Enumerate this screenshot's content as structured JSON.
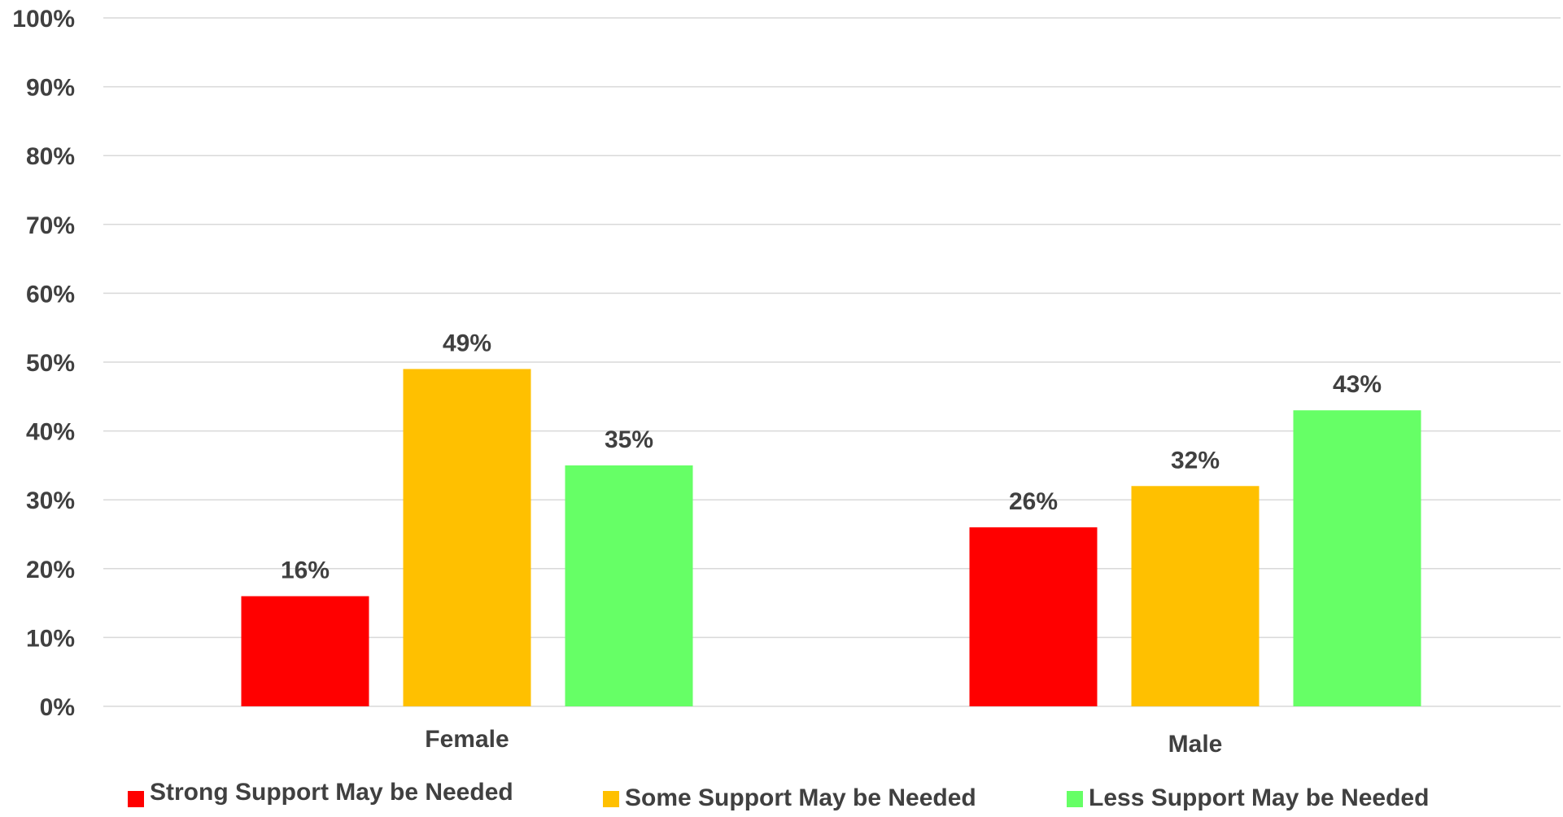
{
  "chart_data": {
    "type": "bar",
    "categories": [
      "Female",
      "Male"
    ],
    "series": [
      {
        "name": "Strong Support May be Needed",
        "values": [
          16,
          26
        ],
        "labels": [
          "16%",
          "26%"
        ],
        "color": "#ff0000"
      },
      {
        "name": "Some Support May be Needed",
        "values": [
          49,
          32
        ],
        "labels": [
          "49%",
          "32%"
        ],
        "color": "#ffc000"
      },
      {
        "name": "Less Support May be Needed",
        "values": [
          35,
          43
        ],
        "labels": [
          "35%",
          "43%"
        ],
        "color": "#66ff66"
      }
    ],
    "yticks": [
      "0%",
      "10%",
      "20%",
      "30%",
      "40%",
      "50%",
      "60%",
      "70%",
      "80%",
      "90%",
      "100%"
    ],
    "ylim": [
      0,
      100
    ],
    "grid": true,
    "legend_position": "bottom",
    "title": "",
    "xlabel": "",
    "ylabel": ""
  }
}
